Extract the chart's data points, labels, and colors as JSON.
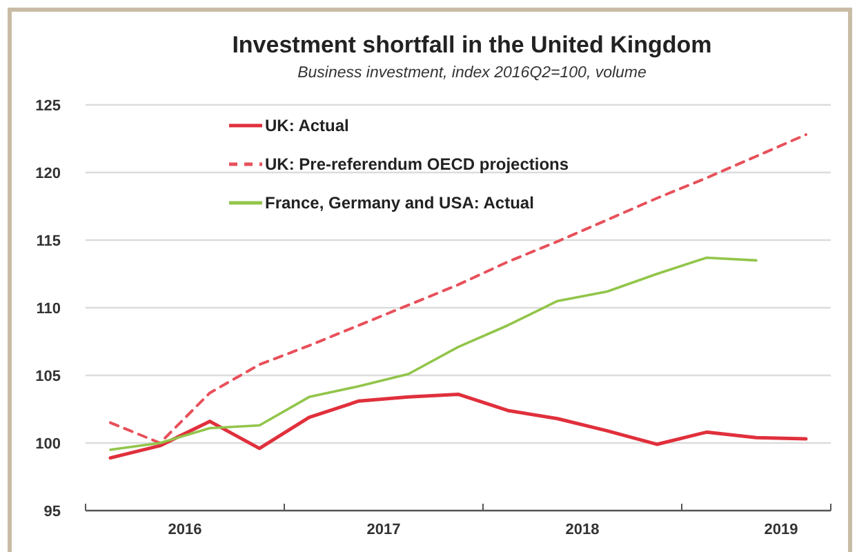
{
  "chart_data": {
    "type": "line",
    "title": "Investment shortfall in the United Kingdom",
    "subtitle": "Business investment, index 2016Q2=100, volume",
    "xlim": [
      2016,
      2019.75
    ],
    "xticks": [
      {
        "value": 2016.5,
        "label": "2016"
      },
      {
        "value": 2017,
        "label": null
      },
      {
        "value": 2017.5,
        "label": "2017"
      },
      {
        "value": 2018,
        "label": null
      },
      {
        "value": 2018.5,
        "label": "2018"
      },
      {
        "value": 2019,
        "label": null
      },
      {
        "value": 2019.5,
        "label": "2019"
      }
    ],
    "ylim": [
      95,
      125
    ],
    "yticks": [
      95,
      100,
      105,
      110,
      115,
      120,
      125
    ],
    "grid": "y",
    "legend": "top left",
    "series": [
      {
        "name": "UK: Actual",
        "color": "#e0303c",
        "line_style": "solid",
        "x": [
          2016.125,
          2016.375,
          2016.625,
          2016.875,
          2017.125,
          2017.375,
          2017.625,
          2017.875,
          2018.125,
          2018.375,
          2018.625,
          2018.875,
          2019.125,
          2019.375,
          2019.625
        ],
        "values": [
          98.9,
          99.8,
          101.6,
          99.6,
          101.9,
          103.1,
          103.4,
          103.6,
          102.4,
          101.8,
          100.9,
          99.9,
          100.8,
          100.4,
          100.3
        ]
      },
      {
        "name": "UK: Pre-referendum OECD projections",
        "color": "#e8505a",
        "line_style": "dashed",
        "x": [
          2016.125,
          2016.375,
          2016.625,
          2016.875,
          2017.125,
          2017.375,
          2017.625,
          2017.875,
          2018.125,
          2018.375,
          2018.625,
          2018.875,
          2019.125,
          2019.375,
          2019.625
        ],
        "values": [
          101.5,
          100.0,
          103.7,
          105.8,
          107.2,
          108.7,
          110.2,
          111.7,
          113.4,
          114.9,
          116.5,
          118.1,
          119.6,
          121.2,
          122.8
        ]
      },
      {
        "name": "France, Germany and USA: Actual",
        "color": "#92c54a",
        "line_style": "solid",
        "x": [
          2016.125,
          2016.375,
          2016.625,
          2016.875,
          2017.125,
          2017.375,
          2017.625,
          2017.875,
          2018.125,
          2018.375,
          2018.625,
          2018.875,
          2019.125,
          2019.375
        ],
        "values": [
          99.5,
          100.0,
          101.1,
          101.3,
          103.4,
          104.2,
          105.1,
          107.1,
          108.7,
          110.5,
          111.2,
          112.5,
          113.7,
          113.5
        ]
      }
    ]
  }
}
